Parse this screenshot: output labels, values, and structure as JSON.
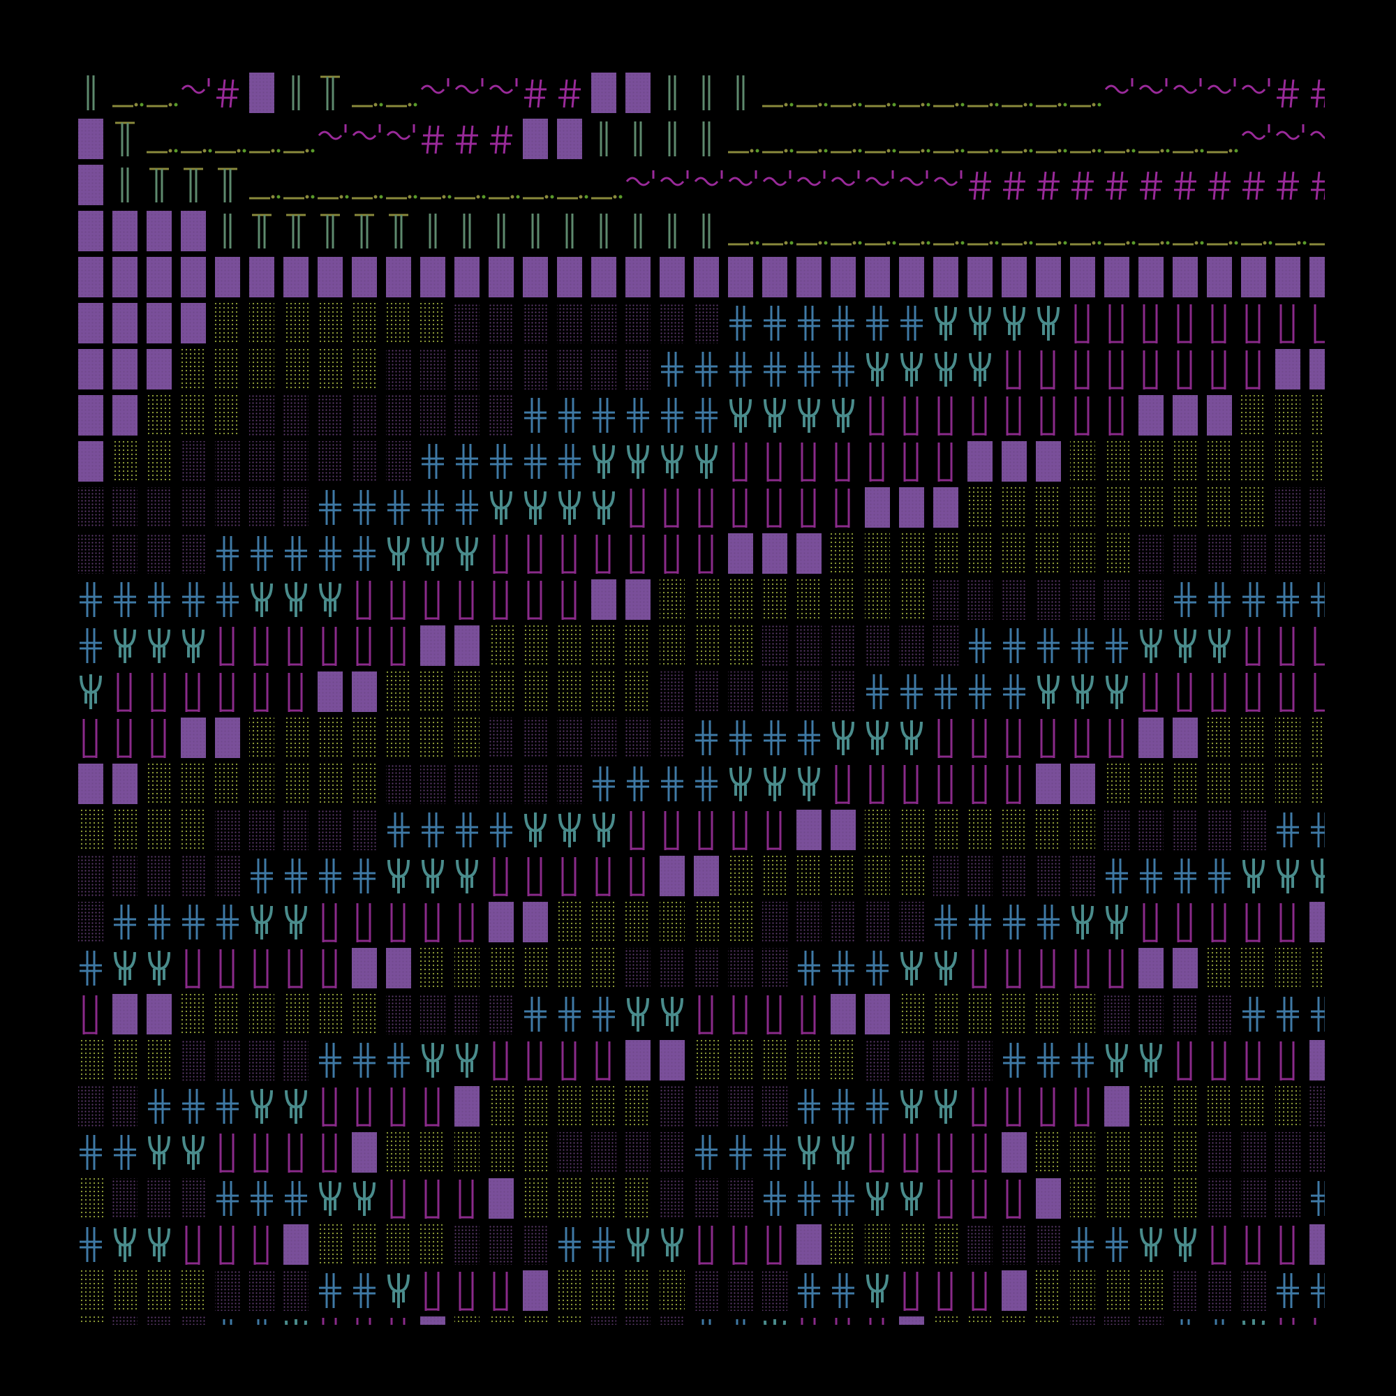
{
  "artwork": {
    "description_visible": false,
    "background": "#000000",
    "palette": {
      "violet_block": "#7a4f9a",
      "violet_dots": "#5e3a6e",
      "lime_dots": "#9aaa3c",
      "steel_cross": "#3f7aa6",
      "teal_psi": "#4a8c8c",
      "magenta_bars": "#8a2a8a",
      "magenta_glyph": "#9a2a9a",
      "sage_pipe": "#5e8a6e",
      "olive_underscore": "#8a8a3c",
      "green_dots": "#5a9a2a"
    },
    "glyph_types": [
      "solid-block",
      "dot-block-violet",
      "dot-block-lime",
      "double-cross",
      "psi-fork",
      "vertical-bars",
      "pipe",
      "tee-pipe",
      "underscore-dot",
      "tilde-quote",
      "hash"
    ]
  }
}
